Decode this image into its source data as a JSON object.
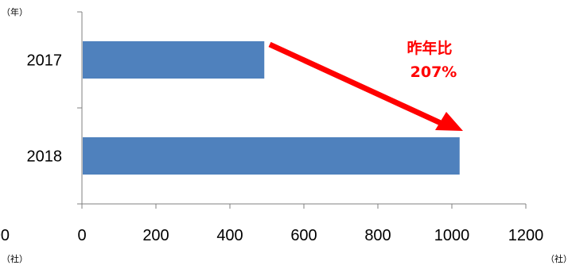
{
  "chart_data": {
    "type": "bar",
    "orientation": "horizontal",
    "categories": [
      "2017",
      "2018"
    ],
    "values": [
      493,
      1021
    ],
    "xlim": [
      0,
      1200
    ],
    "x_ticks": [
      "0",
      "200",
      "400",
      "600",
      "800",
      "1000",
      "1200"
    ],
    "clipped_left_tick": "00",
    "y_unit_label": "（年）",
    "x_unit_label_left": "（社）",
    "x_unit_label_right": "（社）",
    "annotation": {
      "line1": "昨年比",
      "line2": "207%",
      "color": "#ff0000",
      "arrow": "from 2017 bar end to 2018 bar end"
    },
    "bar_color": "#4f81bd",
    "grid": false,
    "legend": "none"
  }
}
